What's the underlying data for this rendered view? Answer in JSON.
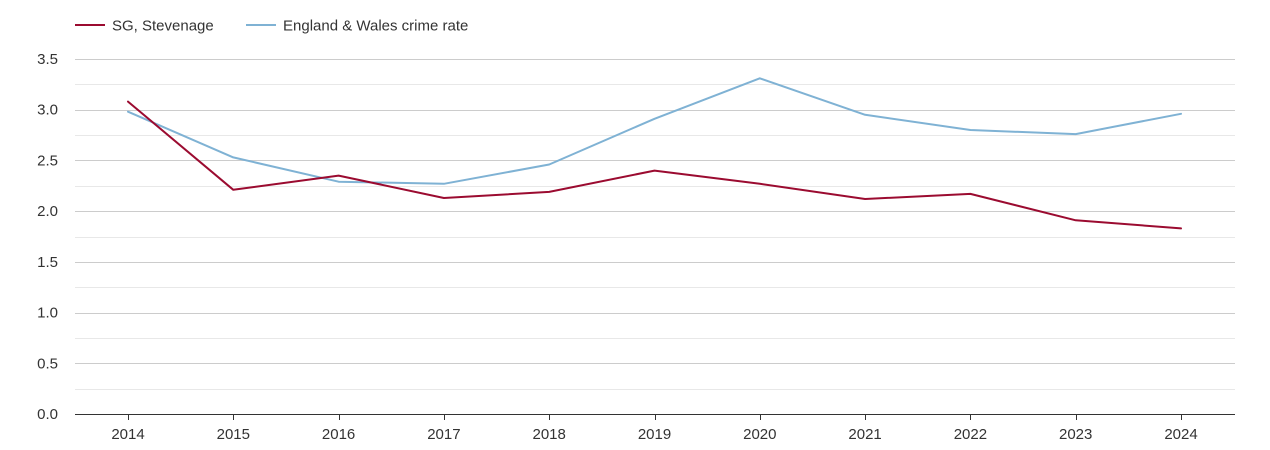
{
  "chart_data": {
    "type": "line",
    "title": "",
    "xlabel": "",
    "ylabel": "",
    "x": [
      "2014",
      "2015",
      "2016",
      "2017",
      "2018",
      "2019",
      "2020",
      "2021",
      "2022",
      "2023",
      "2024"
    ],
    "ylim": [
      0,
      3.5
    ],
    "yticks": [
      "0.0",
      "0.5",
      "1.0",
      "1.5",
      "2.0",
      "2.5",
      "3.0",
      "3.5"
    ],
    "grid": true,
    "legend_position": "top-left",
    "series": [
      {
        "name": "SG, Stevenage",
        "color": "#9b0b30",
        "values": [
          3.08,
          2.21,
          2.35,
          2.13,
          2.19,
          2.4,
          2.27,
          2.12,
          2.17,
          1.91,
          1.83
        ]
      },
      {
        "name": "England & Wales crime rate",
        "color": "#7fb2d4",
        "values": [
          2.98,
          2.53,
          2.29,
          2.27,
          2.46,
          2.91,
          3.31,
          2.95,
          2.8,
          2.76,
          2.96
        ]
      }
    ]
  }
}
